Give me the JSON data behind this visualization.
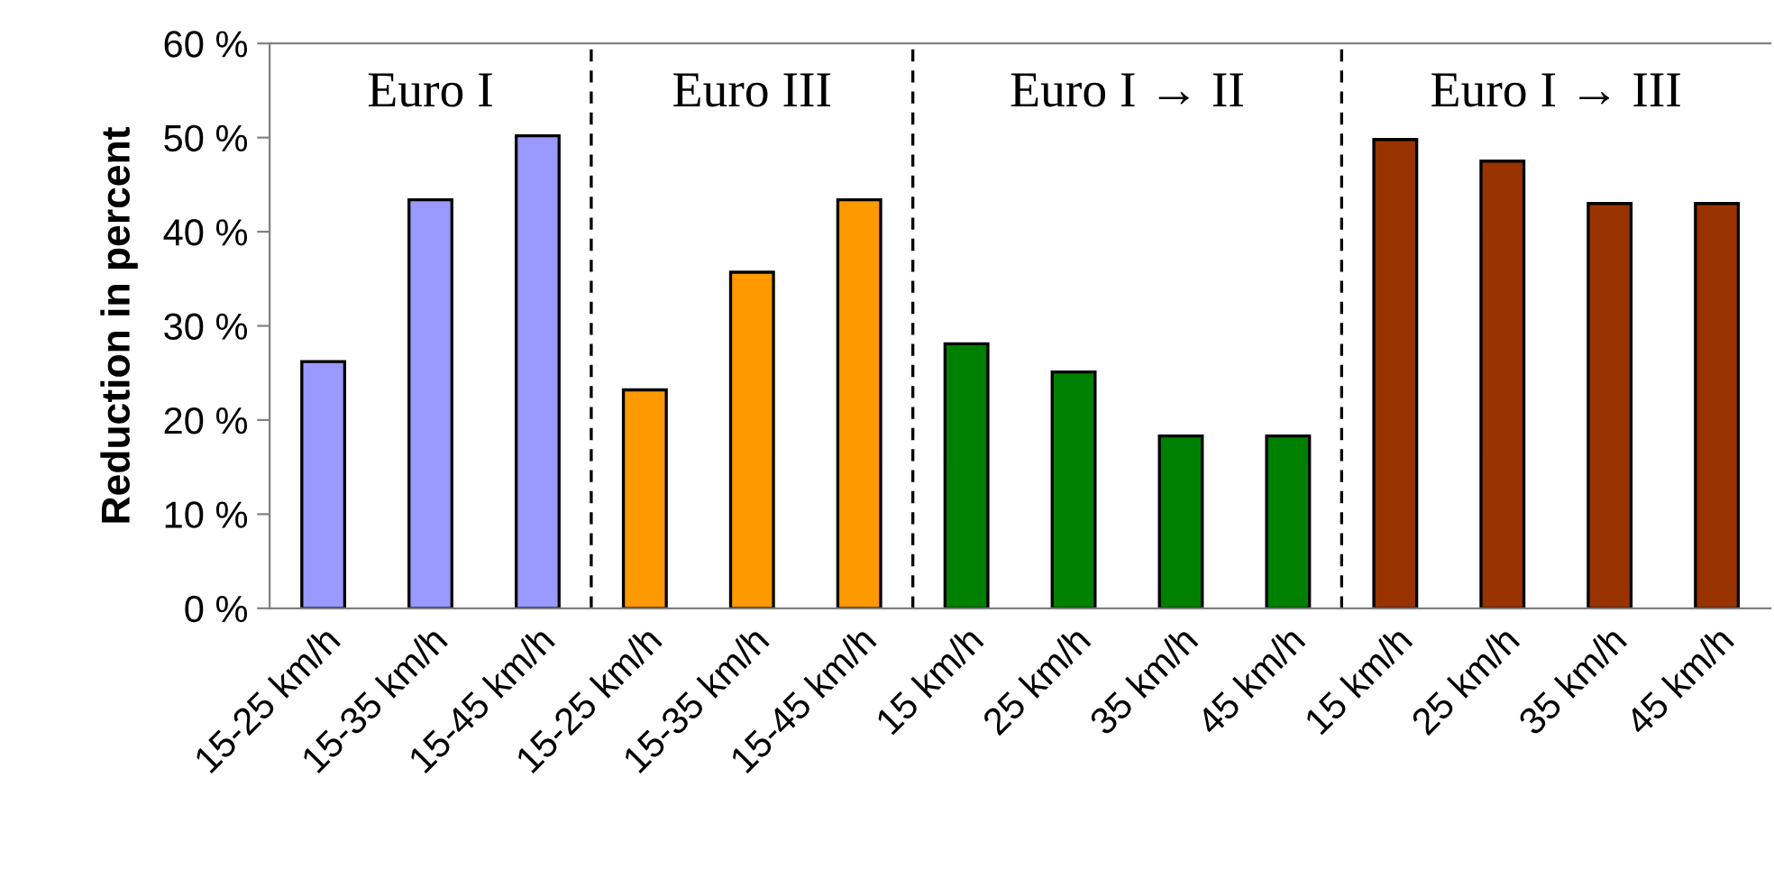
{
  "chart_data": {
    "type": "bar",
    "ylabel": "Reduction in percent",
    "categories": [
      "15-25 km/h",
      "15-35 km/h",
      "15-45 km/h",
      "15-25 km/h",
      "15-35 km/h",
      "15-45 km/h",
      "15 km/h",
      "25 km/h",
      "35 km/h",
      "45 km/h",
      "15 km/h",
      "25 km/h",
      "35 km/h",
      "45 km/h"
    ],
    "values": [
      26.2,
      43.4,
      50.2,
      23.2,
      35.7,
      43.4,
      28.1,
      25.1,
      18.3,
      18.3,
      49.8,
      47.5,
      43.0,
      43.0
    ],
    "colors": [
      "#9999ff",
      "#9999ff",
      "#9999ff",
      "#ff9900",
      "#ff9900",
      "#ff9900",
      "#008000",
      "#008000",
      "#008000",
      "#008000",
      "#993300",
      "#993300",
      "#993300",
      "#993300"
    ],
    "ylim": [
      0,
      60
    ],
    "yticks": [
      {
        "value": 0,
        "label": "0 %"
      },
      {
        "value": 10,
        "label": "10 %"
      },
      {
        "value": 20,
        "label": "20 %"
      },
      {
        "value": 30,
        "label": "30 %"
      },
      {
        "value": 40,
        "label": "40 %"
      },
      {
        "value": 50,
        "label": "50 %"
      },
      {
        "value": 60,
        "label": "60 %"
      }
    ],
    "annotations": [
      "Euro I",
      "Euro III",
      "Euro I → II",
      "Euro I → III"
    ],
    "grid": false,
    "legend": false
  }
}
